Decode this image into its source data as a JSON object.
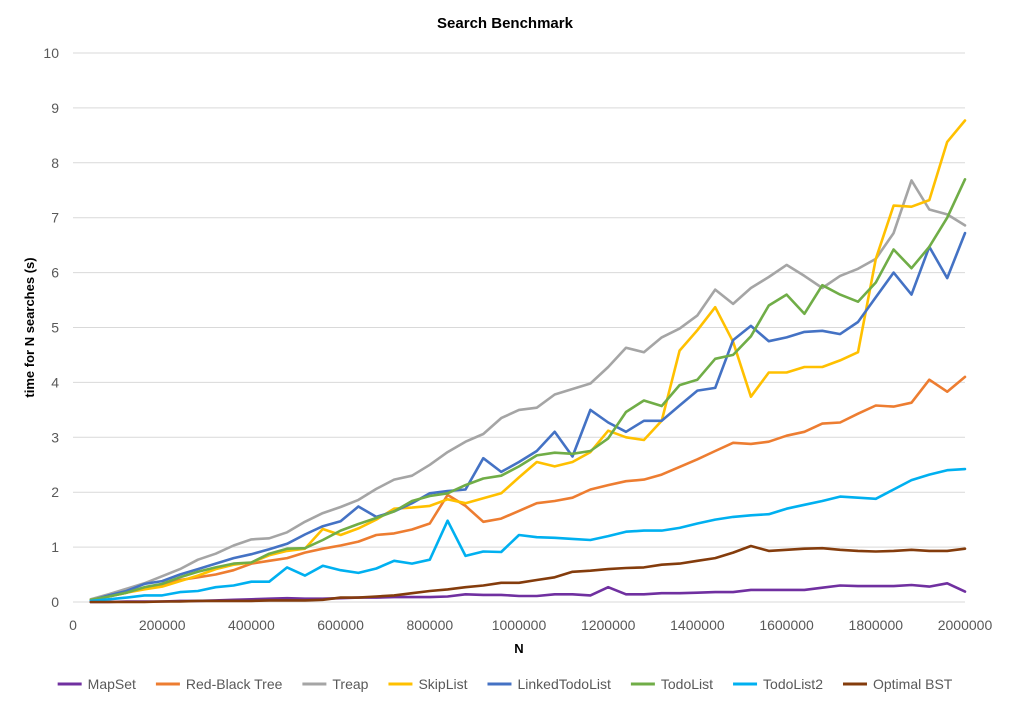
{
  "chart_data": {
    "type": "line",
    "title": "Search Benchmark",
    "xlabel": "N",
    "ylabel": "time for N searches (s)",
    "xlim": [
      0,
      2000000
    ],
    "ylim": [
      0,
      10
    ],
    "x_ticks": [
      0,
      200000,
      400000,
      600000,
      800000,
      1000000,
      1200000,
      1400000,
      1600000,
      1800000,
      2000000
    ],
    "x_tick_labels": [
      "0",
      "200000",
      "400000",
      "600000",
      "800000",
      "1000000",
      "1200000",
      "1400000",
      "1600000",
      "1800000",
      "2000000"
    ],
    "y_ticks": [
      0,
      1,
      2,
      3,
      4,
      5,
      6,
      7,
      8,
      9,
      10
    ],
    "y_tick_labels": [
      "0",
      "1",
      "2",
      "3",
      "4",
      "5",
      "6",
      "7",
      "8",
      "9",
      "10"
    ],
    "grid": "horizontal",
    "legend_position": "bottom",
    "x": [
      40000,
      80000,
      120000,
      160000,
      200000,
      240000,
      280000,
      320000,
      360000,
      400000,
      440000,
      480000,
      520000,
      560000,
      600000,
      640000,
      680000,
      720000,
      760000,
      800000,
      840000,
      880000,
      920000,
      960000,
      1000000,
      1040000,
      1080000,
      1120000,
      1160000,
      1200000,
      1240000,
      1280000,
      1320000,
      1360000,
      1400000,
      1440000,
      1480000,
      1520000,
      1560000,
      1600000,
      1640000,
      1680000,
      1720000,
      1760000,
      1800000,
      1840000,
      1880000,
      1920000,
      1960000,
      2000000
    ],
    "series": [
      {
        "name": "MapSet",
        "color": "#7030a0",
        "values": [
          0.0,
          0.0,
          0.01,
          0.01,
          0.01,
          0.02,
          0.02,
          0.03,
          0.04,
          0.05,
          0.06,
          0.07,
          0.06,
          0.06,
          0.07,
          0.08,
          0.08,
          0.09,
          0.09,
          0.09,
          0.1,
          0.14,
          0.13,
          0.13,
          0.11,
          0.11,
          0.14,
          0.14,
          0.12,
          0.27,
          0.14,
          0.14,
          0.16,
          0.16,
          0.17,
          0.18,
          0.18,
          0.22,
          0.22,
          0.22,
          0.22,
          0.26,
          0.3,
          0.29,
          0.29,
          0.29,
          0.31,
          0.28,
          0.34,
          0.19
        ]
      },
      {
        "name": "Red-Black Tree",
        "color": "#ed7d31",
        "values": [
          0.04,
          0.1,
          0.17,
          0.25,
          0.3,
          0.4,
          0.45,
          0.5,
          0.58,
          0.7,
          0.75,
          0.8,
          0.9,
          0.97,
          1.03,
          1.1,
          1.22,
          1.25,
          1.32,
          1.43,
          1.95,
          1.75,
          1.46,
          1.52,
          1.66,
          1.8,
          1.84,
          1.9,
          2.05,
          2.13,
          2.2,
          2.23,
          2.32,
          2.46,
          2.6,
          2.75,
          2.9,
          2.88,
          2.92,
          3.03,
          3.1,
          3.25,
          3.27,
          3.43,
          3.58,
          3.56,
          3.63,
          4.05,
          3.83,
          4.1
        ]
      },
      {
        "name": "Treap",
        "color": "#a5a5a5",
        "values": [
          0.05,
          0.14,
          0.24,
          0.34,
          0.47,
          0.6,
          0.77,
          0.88,
          1.03,
          1.14,
          1.16,
          1.27,
          1.46,
          1.62,
          1.73,
          1.86,
          2.06,
          2.23,
          2.3,
          2.5,
          2.73,
          2.92,
          3.06,
          3.35,
          3.5,
          3.54,
          3.78,
          3.88,
          3.98,
          4.28,
          4.63,
          4.55,
          4.82,
          4.98,
          5.22,
          5.69,
          5.43,
          5.72,
          5.92,
          6.14,
          5.94,
          5.72,
          5.94,
          6.07,
          6.25,
          6.72,
          7.68,
          7.15,
          7.06,
          6.86
        ]
      },
      {
        "name": "SkipList",
        "color": "#ffc000",
        "values": [
          0.04,
          0.1,
          0.17,
          0.23,
          0.28,
          0.38,
          0.48,
          0.6,
          0.68,
          0.72,
          0.85,
          0.93,
          0.97,
          1.33,
          1.22,
          1.34,
          1.5,
          1.7,
          1.72,
          1.75,
          1.87,
          1.8,
          1.89,
          1.98,
          2.27,
          2.55,
          2.47,
          2.55,
          2.73,
          3.12,
          3.0,
          2.95,
          3.3,
          4.58,
          4.95,
          5.37,
          4.74,
          3.74,
          4.18,
          4.18,
          4.28,
          4.28,
          4.4,
          4.55,
          6.25,
          7.22,
          7.2,
          7.32,
          8.38,
          8.77
        ]
      },
      {
        "name": "LinkedTodoList",
        "color": "#4472c4",
        "values": [
          0.03,
          0.12,
          0.2,
          0.33,
          0.38,
          0.5,
          0.6,
          0.7,
          0.8,
          0.87,
          0.96,
          1.06,
          1.23,
          1.38,
          1.47,
          1.74,
          1.55,
          1.65,
          1.8,
          1.98,
          2.02,
          2.05,
          2.62,
          2.37,
          2.55,
          2.75,
          3.1,
          2.65,
          3.5,
          3.27,
          3.1,
          3.3,
          3.3,
          3.58,
          3.85,
          3.9,
          4.77,
          5.03,
          4.75,
          4.82,
          4.92,
          4.94,
          4.88,
          5.1,
          5.55,
          6.0,
          5.6,
          6.47,
          5.9,
          6.72
        ]
      },
      {
        "name": "TodoList",
        "color": "#70ad47",
        "values": [
          0.04,
          0.1,
          0.17,
          0.27,
          0.33,
          0.45,
          0.55,
          0.63,
          0.7,
          0.72,
          0.88,
          0.97,
          0.98,
          1.13,
          1.3,
          1.42,
          1.53,
          1.65,
          1.84,
          1.93,
          1.98,
          2.13,
          2.25,
          2.3,
          2.47,
          2.67,
          2.72,
          2.7,
          2.75,
          2.98,
          3.46,
          3.67,
          3.57,
          3.95,
          4.05,
          4.43,
          4.5,
          4.84,
          5.4,
          5.6,
          5.25,
          5.77,
          5.6,
          5.47,
          5.82,
          6.42,
          6.08,
          6.47,
          7.0,
          7.7
        ]
      },
      {
        "name": "TodoList2",
        "color": "#00b0f0",
        "values": [
          0.02,
          0.05,
          0.08,
          0.12,
          0.12,
          0.18,
          0.2,
          0.27,
          0.3,
          0.37,
          0.37,
          0.63,
          0.48,
          0.66,
          0.58,
          0.53,
          0.61,
          0.75,
          0.7,
          0.77,
          1.48,
          0.84,
          0.92,
          0.91,
          1.22,
          1.18,
          1.17,
          1.15,
          1.13,
          1.2,
          1.28,
          1.3,
          1.3,
          1.35,
          1.43,
          1.5,
          1.55,
          1.58,
          1.6,
          1.7,
          1.77,
          1.84,
          1.92,
          1.9,
          1.88,
          2.05,
          2.22,
          2.32,
          2.4,
          2.42
        ]
      },
      {
        "name": "Optimal BST",
        "color": "#843c0c",
        "values": [
          0.0,
          0.0,
          0.0,
          0.0,
          0.01,
          0.01,
          0.02,
          0.02,
          0.02,
          0.02,
          0.03,
          0.03,
          0.03,
          0.04,
          0.08,
          0.08,
          0.1,
          0.12,
          0.16,
          0.2,
          0.23,
          0.27,
          0.3,
          0.35,
          0.35,
          0.4,
          0.45,
          0.55,
          0.57,
          0.6,
          0.62,
          0.63,
          0.68,
          0.7,
          0.75,
          0.8,
          0.9,
          1.02,
          0.93,
          0.95,
          0.97,
          0.98,
          0.95,
          0.93,
          0.92,
          0.93,
          0.95,
          0.93,
          0.93,
          0.97
        ]
      }
    ]
  }
}
